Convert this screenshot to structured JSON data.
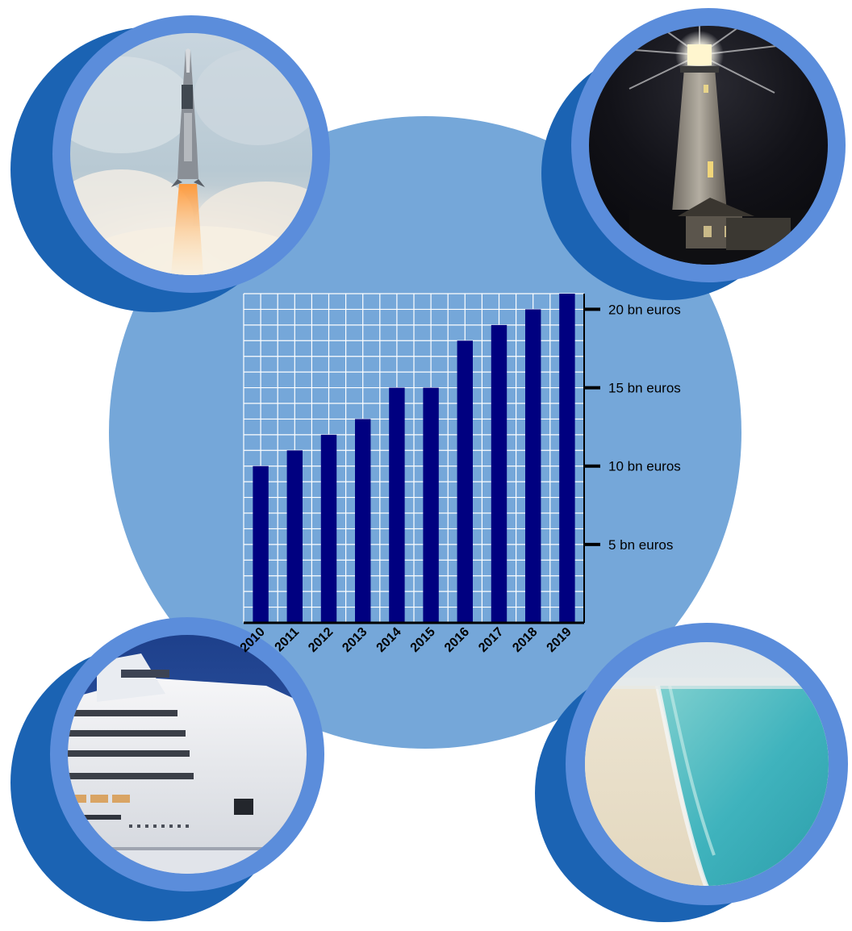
{
  "colors": {
    "background": "#ffffff",
    "big_circle": "#75a7d9",
    "shadow_circle": "#1b63b3",
    "ring": "#5b8ddb",
    "bar": "#000080",
    "grid": "#ffffff"
  },
  "photos": [
    {
      "name": "rocket-launch-photo",
      "subject": "rocket launch"
    },
    {
      "name": "lighthouse-photo",
      "subject": "lighthouse at night"
    },
    {
      "name": "cruise-ship-photo",
      "subject": "cruise ship"
    },
    {
      "name": "beach-photo",
      "subject": "beach and sea"
    }
  ],
  "chart_data": {
    "type": "bar",
    "categories": [
      "2010",
      "2011",
      "2012",
      "2013",
      "2014",
      "2015",
      "2016",
      "2017",
      "2018",
      "2019"
    ],
    "values": [
      10,
      11,
      12,
      13,
      15,
      15,
      18,
      19,
      20,
      21
    ],
    "ylim": [
      0,
      21
    ],
    "yticks": [
      5,
      10,
      15,
      20
    ],
    "ytick_labels": [
      "5 bn euros",
      "10 bn euros",
      "15 bn euros",
      "20 bn euros"
    ],
    "grid": true,
    "title": "",
    "xlabel": "",
    "ylabel": ""
  }
}
